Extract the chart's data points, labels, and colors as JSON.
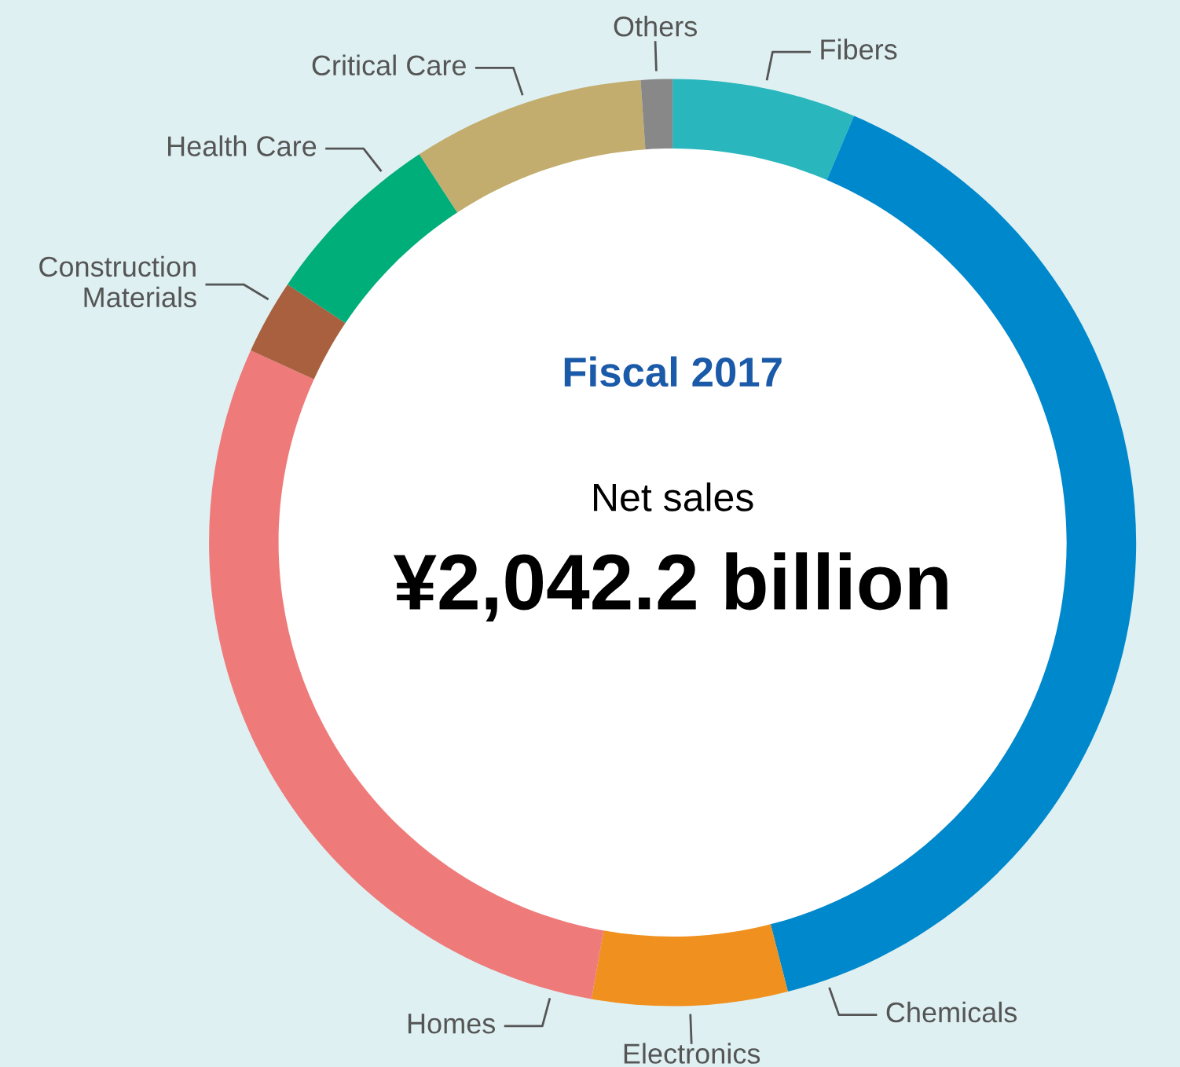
{
  "chart_data": {
    "type": "donut",
    "title": "Fiscal 2017",
    "categories": [
      "Fibers",
      "Chemicals",
      "Electronics",
      "Homes",
      "Construction Materials",
      "Health Care",
      "Critical Care",
      "Others"
    ],
    "values": [
      6.4,
      39.6,
      6.8,
      29.0,
      2.6,
      6.4,
      8.1,
      1.1
    ],
    "colors": [
      "#29b6bd",
      "#0088cc",
      "#f0901e",
      "#ef7a7a",
      "#a8603f",
      "#00ae7a",
      "#c2ad6e",
      "#888888"
    ],
    "annotations": [
      "Net sales",
      "¥2,042.2 billion"
    ]
  }
}
